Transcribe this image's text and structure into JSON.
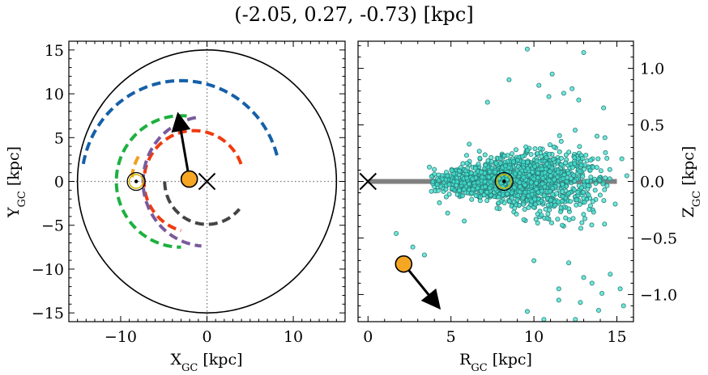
{
  "title": "(-2.05, 0.27, -0.73) [kpc]",
  "chart_data": [
    {
      "type": "line",
      "panel": "left",
      "xlabel_main": "X",
      "xlabel_sub": "GC",
      "xlabel_unit": " [kpc]",
      "ylabel_main": "Y",
      "ylabel_sub": "GC",
      "ylabel_unit": " [kpc]",
      "xlim": [
        -16,
        16
      ],
      "ylim": [
        -16,
        16
      ],
      "xticks": [
        -10,
        0,
        10
      ],
      "xtick_labels": [
        "−10",
        "0",
        "10"
      ],
      "yticks": [
        -15,
        -10,
        -5,
        0,
        5,
        10,
        15
      ],
      "ytick_labels": [
        "−15",
        "−10",
        "−5",
        "0",
        "5",
        "10",
        "15"
      ],
      "boundary_circle_radius": 15,
      "dotted_axes": true,
      "arcs": [
        {
          "color": "#1560a8",
          "cx": -3,
          "cy": 0,
          "r": 11.5,
          "theta_start": 15,
          "theta_end": 170
        },
        {
          "color": "#1db040",
          "cx": -3,
          "cy": 0,
          "r": 7.5,
          "theta_start": 85,
          "theta_end": 270
        },
        {
          "color": "#f0a020",
          "cx": -3,
          "cy": 0,
          "r": 5.7,
          "theta_start": 150,
          "theta_end": 175
        },
        {
          "color": "#f03a10",
          "cx": -1.5,
          "cy": 0,
          "r": 5.8,
          "theta_start": 20,
          "theta_end": 255
        },
        {
          "color": "#7a5a9c",
          "cx": 0,
          "cy": 0,
          "r": 7.4,
          "theta_start": 100,
          "theta_end": 265
        },
        {
          "color": "#444444",
          "cx": 0,
          "cy": 0,
          "r": 4.9,
          "theta_start": 180,
          "theta_end": 320
        }
      ],
      "galactic_center": {
        "x": 0,
        "y": 0
      },
      "sun": {
        "x": -8.2,
        "y": 0
      },
      "object": {
        "x": -2.05,
        "y": 0.27
      },
      "velocity_arrow": {
        "x0": -2.05,
        "y0": 0.27,
        "x1": -3.3,
        "y1": 7.4
      }
    },
    {
      "type": "scatter",
      "panel": "right",
      "xlabel_main": "R",
      "xlabel_sub": "GC",
      "xlabel_unit": " [kpc]",
      "ylabel_main": "Z",
      "ylabel_sub": "GC",
      "ylabel_unit": " [kpc]",
      "xlim": [
        -0.6,
        16
      ],
      "ylim": [
        -1.24,
        1.24
      ],
      "xticks": [
        0,
        5,
        10,
        15
      ],
      "xtick_labels": [
        "0",
        "5",
        "10",
        "15"
      ],
      "yticks": [
        -1.0,
        -0.5,
        0.0,
        0.5,
        1.0
      ],
      "ytick_labels": [
        "−1.0",
        "−0.5",
        "0.0",
        "0.5",
        "1.0"
      ],
      "disk_band": {
        "x0": 0,
        "x1": 15,
        "z": 0
      },
      "scatter_style": {
        "fill": "#40e0d0",
        "edge": "#2a7f78"
      },
      "points": [
        [
          9.6,
          1.17
        ],
        [
          13.0,
          1.14
        ],
        [
          10.3,
          0.85
        ],
        [
          11.1,
          0.95
        ],
        [
          8.5,
          0.9
        ],
        [
          12.3,
          0.82
        ],
        [
          11.8,
          0.78
        ],
        [
          7.2,
          0.7
        ],
        [
          14.2,
          0.65
        ],
        [
          12.7,
          0.72
        ],
        [
          10.9,
          0.75
        ],
        [
          13.8,
          0.4
        ],
        [
          1.7,
          -0.46
        ],
        [
          2.7,
          -0.58
        ],
        [
          3.4,
          -0.65
        ],
        [
          12.1,
          -0.72
        ],
        [
          14.6,
          -0.82
        ],
        [
          13.0,
          -0.85
        ],
        [
          11.5,
          -0.95
        ],
        [
          14.1,
          -0.99
        ],
        [
          15.2,
          -0.95
        ],
        [
          10.0,
          -0.7
        ],
        [
          12.8,
          -1.07
        ],
        [
          13.9,
          -1.14
        ],
        [
          15.4,
          -1.1
        ],
        [
          9.6,
          -1.15
        ],
        [
          10.6,
          -1.22
        ],
        [
          12.5,
          -1.22
        ],
        [
          11.5,
          -1.05
        ],
        [
          13.5,
          -0.9
        ],
        [
          4.8,
          -0.28
        ],
        [
          6.1,
          0.33
        ],
        [
          5.8,
          -0.35
        ],
        [
          15.6,
          0.05
        ],
        [
          14.9,
          -0.2
        ],
        [
          15.3,
          0.2
        ]
      ],
      "cloud": {
        "x_min": 3.5,
        "x_max": 14.8,
        "x_peak": 8.5,
        "z_sigma": 0.11,
        "count": 1400
      },
      "galactic_center": {
        "x": 0,
        "z": 0
      },
      "sun": {
        "x": 8.2,
        "z": 0
      },
      "object": {
        "x": 2.15,
        "z": -0.73
      },
      "velocity_arrow": {
        "x0": 2.15,
        "z0": -0.73,
        "x1": 4.2,
        "z1": -1.1
      }
    }
  ]
}
